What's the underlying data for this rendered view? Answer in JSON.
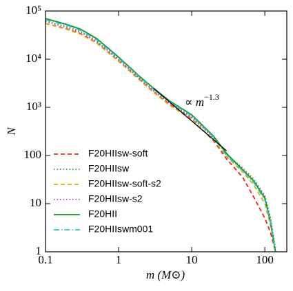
{
  "chart_data": {
    "type": "line",
    "xlabel": "m (M⊙)",
    "ylabel": "N",
    "log_x": true,
    "log_y": true,
    "xlim": [
      0.1,
      200
    ],
    "ylim": [
      1,
      100000
    ],
    "xticks": [
      0.1,
      1,
      10,
      100
    ],
    "yticks": [
      1,
      10,
      100,
      {
        "value": 1000,
        "label": "10³"
      },
      {
        "value": 10000,
        "label": "10⁴"
      },
      {
        "value": 100000,
        "label": "10⁵"
      }
    ],
    "legend": "lower left",
    "annotation": {
      "text": "∝ m",
      "exponent": "−1.3",
      "line_x": [
        3,
        30
      ],
      "line_y": [
        2500,
        125
      ]
    },
    "x": [
      0.1,
      0.2,
      0.3,
      0.5,
      1,
      2,
      3,
      5,
      10,
      20,
      30,
      50,
      70,
      100,
      120,
      140
    ],
    "series": [
      {
        "name": "F20HIIsw-soft",
        "color": "#ff1a1a",
        "linestyle": "dashed",
        "values": [
          55000,
          42000,
          34000,
          22000,
          9200,
          3600,
          2100,
          1150,
          580,
          200,
          85,
          35,
          14,
          5,
          2.5,
          1
        ]
      },
      {
        "name": "F20HIIsw",
        "color": "#2ca02c",
        "linestyle": "dotted",
        "values": [
          62000,
          47000,
          38000,
          24000,
          10000,
          3900,
          2300,
          1250,
          640,
          230,
          105,
          55,
          33,
          15,
          5,
          1.2
        ]
      },
      {
        "name": "F20HIIsw-soft-s2",
        "color": "#d4b400",
        "linestyle": "dashed",
        "values": [
          55000,
          41000,
          33000,
          21500,
          9000,
          3500,
          2050,
          1100,
          560,
          210,
          95,
          45,
          25,
          10,
          3.5,
          1
        ]
      },
      {
        "name": "F20HIIsw-s2",
        "color": "#cc33cc",
        "linestyle": "dotted",
        "values": [
          60000,
          45000,
          36000,
          23000,
          9700,
          3800,
          2200,
          1200,
          620,
          235,
          108,
          52,
          30,
          14,
          4.5,
          1
        ]
      },
      {
        "name": "F20HII",
        "color": "#1f8f1f",
        "linestyle": "solid",
        "values": [
          70000,
          52000,
          42000,
          27000,
          11000,
          4200,
          2500,
          1350,
          700,
          250,
          110,
          50,
          30,
          13,
          4,
          1
        ]
      },
      {
        "name": "F20HIIswm001",
        "color": "#1fc8c8",
        "linestyle": "dashdot",
        "values": [
          66000,
          50000,
          40000,
          25500,
          10500,
          4050,
          2400,
          1300,
          670,
          240,
          100,
          48,
          28,
          12,
          4,
          1
        ]
      }
    ]
  }
}
